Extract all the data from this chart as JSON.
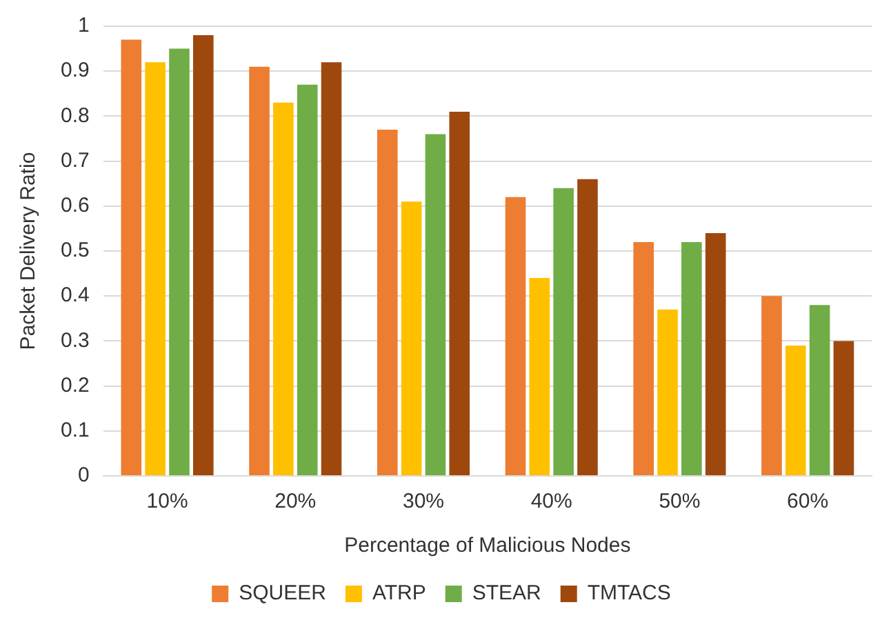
{
  "chart_data": {
    "type": "bar",
    "xlabel": "Percentage of Malicious Nodes",
    "ylabel": "Packet Delivery Ratio",
    "categories": [
      "10%",
      "20%",
      "30%",
      "40%",
      "50%",
      "60%"
    ],
    "series": [
      {
        "name": "SQUEER",
        "color": "#ed7d31",
        "values": [
          0.97,
          0.91,
          0.77,
          0.62,
          0.52,
          0.4
        ]
      },
      {
        "name": "ATRP",
        "color": "#ffc000",
        "values": [
          0.92,
          0.83,
          0.61,
          0.44,
          0.37,
          0.29
        ]
      },
      {
        "name": "STEAR",
        "color": "#70ad47",
        "values": [
          0.95,
          0.87,
          0.76,
          0.64,
          0.52,
          0.38
        ]
      },
      {
        "name": "TMTACS",
        "color": "#9e480e",
        "values": [
          0.98,
          0.92,
          0.81,
          0.66,
          0.54,
          0.3
        ]
      }
    ],
    "ylim": [
      0,
      1
    ],
    "yticks": [
      0,
      0.1,
      0.2,
      0.3,
      0.4,
      0.5,
      0.6,
      0.7,
      0.8,
      0.9,
      1
    ],
    "grid": "y",
    "legend": "bottom"
  }
}
